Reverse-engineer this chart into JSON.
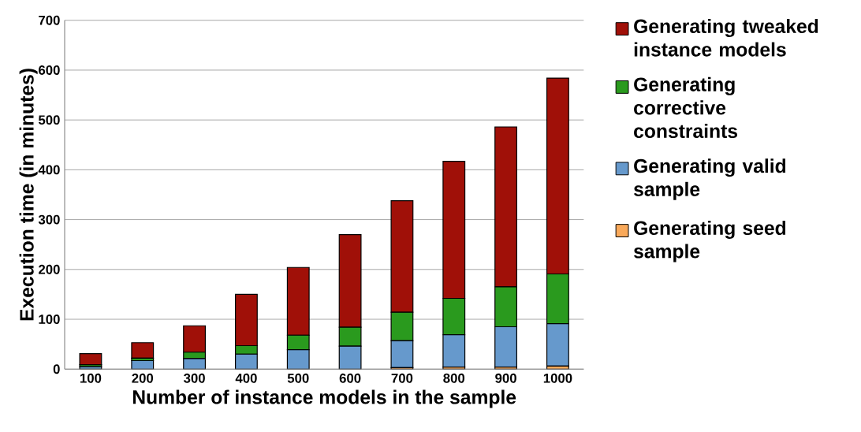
{
  "chart_data": {
    "type": "bar",
    "stacked": true,
    "xlabel": "Number of instance models in the sample",
    "ylabel": "Execution time (in minutes)",
    "categories": [
      "100",
      "200",
      "300",
      "400",
      "500",
      "600",
      "700",
      "800",
      "900",
      "1000"
    ],
    "series": [
      {
        "name": "Generating seed sample",
        "color": "#f9a95a",
        "values": [
          null,
          null,
          null,
          null,
          null,
          null,
          3,
          4,
          4,
          6
        ]
      },
      {
        "name": "Generating valid sample",
        "color": "#6699cc",
        "values": [
          5,
          17,
          21,
          30,
          39,
          46,
          54,
          65,
          81,
          85
        ]
      },
      {
        "name": "Generating corrective constraints",
        "color": "#2a9a1e",
        "values": [
          4,
          5,
          13,
          17,
          29,
          38,
          57,
          73,
          80,
          100
        ]
      },
      {
        "name": "Generating tweaked instance models",
        "color": "#a01008",
        "values": [
          22,
          31,
          53,
          103,
          136,
          186,
          224,
          275,
          321,
          393
        ]
      }
    ],
    "ylim": [
      0,
      700
    ],
    "yticks": [
      0,
      100,
      200,
      300,
      400,
      500,
      600,
      700
    ],
    "grid": "y",
    "legend": "right"
  }
}
